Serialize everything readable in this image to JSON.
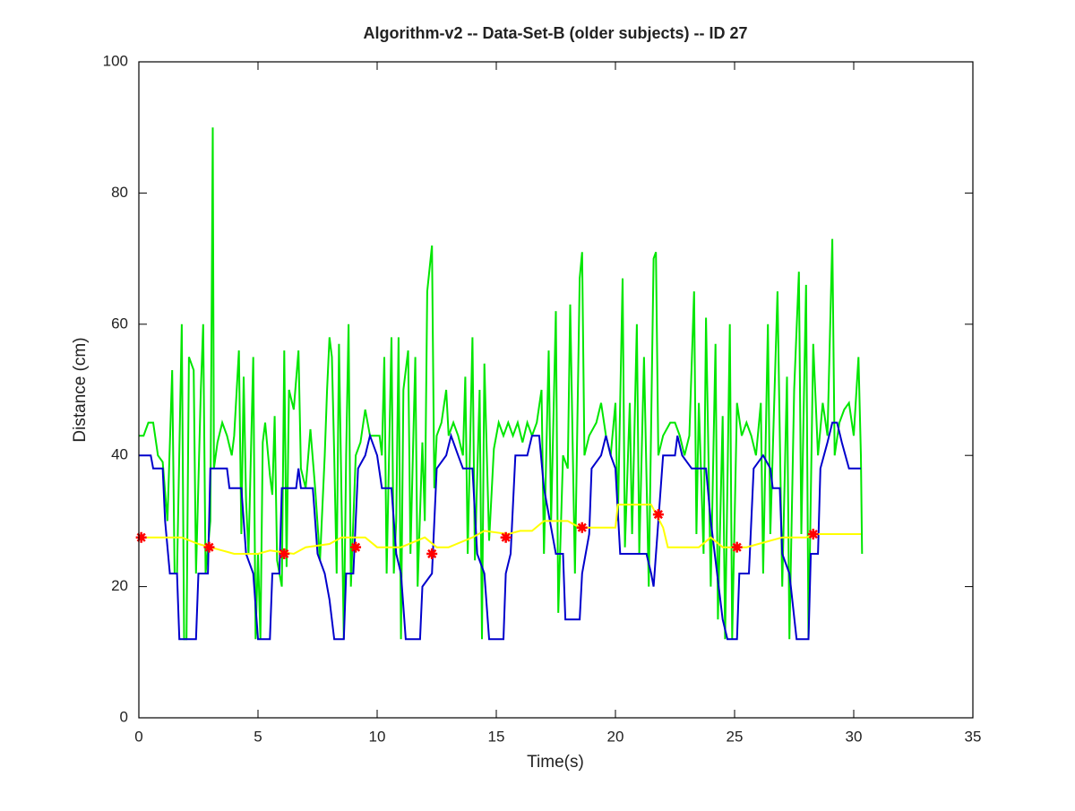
{
  "chart_data": {
    "type": "line",
    "title": "Algorithm-v2 -- Data-Set-B (older subjects) -- ID 27",
    "xlabel": "Time(s)",
    "ylabel": "Distance (cm)",
    "xlim": [
      0,
      35
    ],
    "xticks": [
      0,
      5,
      10,
      15,
      20,
      25,
      30,
      35
    ],
    "ylim": [
      0,
      100
    ],
    "yticks": [
      0,
      20,
      40,
      60,
      80,
      100
    ],
    "grid": false,
    "series": [
      {
        "color": "#00e600",
        "x": [
          0,
          0.2,
          0.4,
          0.6,
          0.8,
          1.0,
          1.2,
          1.4,
          1.5,
          1.6,
          1.8,
          1.9,
          2.0,
          2.1,
          2.3,
          2.4,
          2.6,
          2.7,
          2.8,
          3.0,
          3.1,
          3.15,
          3.3,
          3.5,
          3.7,
          3.9,
          4.0,
          4.2,
          4.3,
          4.4,
          4.5,
          4.6,
          4.8,
          4.9,
          5.0,
          5.1,
          5.2,
          5.3,
          5.5,
          5.6,
          5.7,
          5.8,
          6.0,
          6.1,
          6.2,
          6.3,
          6.5,
          6.7,
          6.8,
          7.0,
          7.2,
          7.4,
          7.6,
          7.8,
          7.9,
          8.0,
          8.1,
          8.2,
          8.3,
          8.4,
          8.6,
          8.7,
          8.8,
          8.9,
          9.1,
          9.3,
          9.5,
          9.7,
          9.9,
          10.1,
          10.2,
          10.3,
          10.4,
          10.6,
          10.7,
          10.8,
          10.9,
          11.0,
          11.1,
          11.3,
          11.4,
          11.6,
          11.7,
          11.9,
          12.0,
          12.1,
          12.3,
          12.4,
          12.5,
          12.7,
          12.9,
          13.0,
          13.2,
          13.4,
          13.6,
          13.7,
          13.8,
          14.0,
          14.1,
          14.3,
          14.4,
          14.5,
          14.7,
          14.9,
          15.1,
          15.3,
          15.5,
          15.7,
          15.9,
          16.1,
          16.3,
          16.5,
          16.7,
          16.9,
          17.0,
          17.2,
          17.3,
          17.5,
          17.6,
          17.8,
          18.0,
          18.1,
          18.3,
          18.5,
          18.6,
          18.7,
          18.9,
          19.2,
          19.4,
          19.6,
          19.8,
          20.0,
          20.1,
          20.3,
          20.4,
          20.6,
          20.7,
          20.9,
          21.0,
          21.2,
          21.4,
          21.6,
          21.7,
          21.8,
          22.0,
          22.3,
          22.5,
          22.7,
          22.9,
          23.1,
          23.3,
          23.4,
          23.5,
          23.7,
          23.8,
          24.0,
          24.2,
          24.3,
          24.5,
          24.6,
          24.8,
          24.9,
          25.1,
          25.3,
          25.5,
          25.7,
          25.9,
          26.1,
          26.2,
          26.4,
          26.5,
          26.8,
          27.0,
          27.2,
          27.3,
          27.5,
          27.7,
          27.8,
          28.0,
          28.1,
          28.3,
          28.5,
          28.7,
          28.9,
          29.0,
          29.1,
          29.2,
          29.4,
          29.6,
          29.8,
          30.0,
          30.2,
          30.3,
          30.35
        ],
        "values": [
          43,
          43,
          45,
          45,
          40,
          39,
          30,
          53,
          22,
          22,
          60,
          12,
          12,
          55,
          53,
          22,
          50,
          60,
          22,
          30,
          90,
          38,
          42,
          45,
          43,
          40,
          43,
          56,
          28,
          52,
          33,
          25,
          55,
          12,
          25,
          12,
          42,
          45,
          37,
          34,
          46,
          24,
          20,
          56,
          23,
          50,
          47,
          56,
          38,
          35,
          44,
          35,
          24,
          40,
          50,
          58,
          55,
          40,
          22,
          57,
          12,
          40,
          60,
          20,
          40,
          42,
          47,
          43,
          43,
          43,
          40,
          55,
          22,
          58,
          22,
          30,
          58,
          12,
          50,
          56,
          25,
          55,
          20,
          42,
          30,
          65,
          72,
          35,
          43,
          45,
          50,
          43,
          45,
          43,
          40,
          52,
          25,
          58,
          24,
          50,
          12,
          54,
          27,
          41,
          45,
          43,
          45,
          43,
          45,
          42,
          45,
          43,
          45,
          50,
          25,
          56,
          30,
          62,
          16,
          40,
          38,
          63,
          22,
          67,
          71,
          40,
          43,
          45,
          48,
          43,
          40,
          48,
          30,
          67,
          26,
          48,
          28,
          60,
          25,
          55,
          20,
          70,
          71,
          40,
          43,
          45,
          45,
          43,
          40,
          43,
          65,
          28,
          48,
          25,
          61,
          20,
          57,
          15,
          46,
          12,
          60,
          12,
          48,
          43,
          45,
          43,
          40,
          48,
          22,
          60,
          28,
          65,
          20,
          52,
          12,
          50,
          68,
          28,
          66,
          12,
          57,
          40,
          48,
          43,
          58,
          73,
          40,
          45,
          47,
          48,
          43,
          55,
          40,
          25
        ]
      },
      {
        "color": "#0000cc",
        "x": [
          0,
          0.5,
          0.6,
          1.0,
          1.1,
          1.3,
          1.6,
          1.7,
          2.4,
          2.5,
          2.9,
          3.0,
          3.7,
          3.8,
          4.3,
          4.5,
          4.8,
          5.0,
          5.5,
          5.6,
          5.9,
          6.0,
          6.6,
          6.7,
          6.8,
          7.3,
          7.5,
          7.8,
          8.0,
          8.2,
          8.6,
          8.7,
          9.0,
          9.2,
          9.5,
          9.7,
          10.0,
          10.2,
          10.6,
          10.8,
          11.0,
          11.2,
          11.8,
          11.9,
          12.3,
          12.5,
          12.9,
          13.1,
          13.4,
          13.6,
          14.0,
          14.2,
          14.5,
          14.7,
          15.3,
          15.4,
          15.6,
          15.8,
          16.3,
          16.5,
          16.8,
          17.0,
          17.5,
          17.8,
          17.9,
          18.5,
          18.6,
          18.9,
          19.0,
          19.4,
          19.6,
          19.8,
          20.0,
          20.2,
          21.3,
          21.5,
          21.6,
          21.8,
          22.0,
          22.5,
          22.6,
          22.8,
          23.2,
          23.8,
          24.0,
          24.5,
          24.7,
          25.1,
          25.2,
          25.6,
          25.8,
          26.2,
          26.5,
          26.6,
          26.9,
          27.0,
          27.3,
          27.6,
          28.1,
          28.2,
          28.5,
          28.6,
          28.9,
          29.1,
          29.3,
          29.5,
          29.8,
          30.3
        ],
        "values": [
          40,
          40,
          38,
          38,
          30,
          22,
          22,
          12,
          12,
          22,
          22,
          38,
          38,
          35,
          35,
          25,
          22,
          12,
          12,
          22,
          22,
          35,
          35,
          38,
          35,
          35,
          25,
          22,
          18,
          12,
          12,
          22,
          22,
          38,
          40,
          43,
          40,
          35,
          35,
          25,
          22,
          12,
          12,
          20,
          22,
          38,
          40,
          43,
          40,
          38,
          38,
          25,
          22,
          12,
          12,
          22,
          25,
          40,
          40,
          43,
          43,
          35,
          25,
          25,
          15,
          15,
          22,
          28,
          38,
          40,
          43,
          40,
          38,
          25,
          25,
          22,
          20,
          30,
          40,
          40,
          43,
          40,
          38,
          38,
          30,
          15,
          12,
          12,
          22,
          22,
          38,
          40,
          38,
          35,
          35,
          25,
          22,
          12,
          12,
          25,
          25,
          38,
          42,
          45,
          45,
          42,
          38,
          38
        ]
      },
      {
        "color": "#ffff00",
        "x": [
          0,
          1.8,
          2.5,
          3.0,
          3.5,
          4.0,
          5.0,
          5.5,
          6.5,
          7.0,
          8.0,
          8.5,
          9.0,
          9.5,
          10.0,
          11.0,
          12.0,
          12.5,
          13.0,
          14.0,
          14.5,
          15.5,
          16.0,
          16.5,
          17.0,
          18.0,
          18.5,
          19.5,
          20.0,
          20.1,
          21.5,
          22.0,
          22.2,
          23.5,
          24.0,
          24.5,
          25.5,
          26.0,
          27.0,
          28.0,
          28.5,
          30.3
        ],
        "values": [
          27.5,
          27.5,
          26.5,
          26,
          25.5,
          25,
          25,
          25.5,
          25,
          26,
          26.5,
          27.5,
          27.5,
          27.5,
          26,
          26,
          27.5,
          26,
          26,
          27.5,
          28.5,
          28,
          28.5,
          28.5,
          30,
          30,
          29,
          29,
          29,
          32.5,
          32.5,
          29,
          26,
          26,
          27.5,
          26,
          26,
          26.5,
          27.5,
          27.5,
          28,
          28
        ]
      },
      {
        "color": "#ff0000",
        "marker": "*",
        "linestyle": "none",
        "x": [
          0.1,
          2.95,
          6.1,
          9.1,
          12.3,
          15.4,
          18.6,
          21.8,
          25.1,
          28.3
        ],
        "values": [
          27.5,
          26,
          25,
          26,
          25,
          27.5,
          29,
          31,
          26,
          28
        ]
      }
    ]
  }
}
